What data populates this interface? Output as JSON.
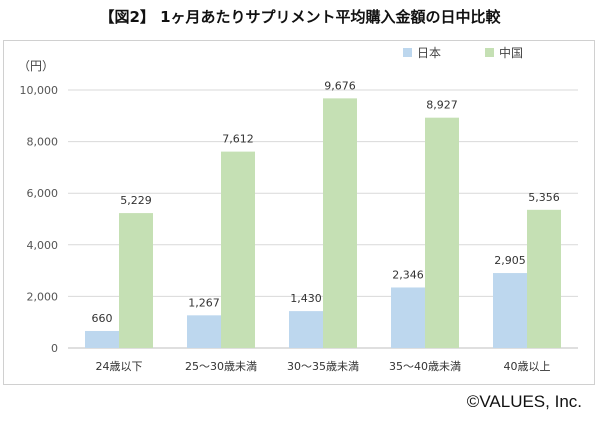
{
  "title": "【図2】 1ヶ月あたりサプリメント平均購入金額の日中比較",
  "copyright": "©VALUES, Inc.",
  "chart_data": {
    "type": "bar",
    "unit_label": "（円）",
    "categories": [
      "24歳以下",
      "25〜30歳未満",
      "30〜35歳未満",
      "35〜40歳未満",
      "40歳以上"
    ],
    "series": [
      {
        "name": "日本",
        "color": "#bdd7ee",
        "values": [
          660,
          1267,
          1430,
          2346,
          2905
        ],
        "labels": [
          "660",
          "1,267",
          "1,430",
          "2,346",
          "2,905"
        ]
      },
      {
        "name": "中国",
        "color": "#c5e0b4",
        "values": [
          5229,
          7612,
          9676,
          8927,
          5356
        ],
        "labels": [
          "5,229",
          "7,612",
          "9,676",
          "8,927",
          "5,356"
        ]
      }
    ],
    "ylim": [
      0,
      10000
    ],
    "yticks": [
      0,
      2000,
      4000,
      6000,
      8000,
      10000
    ],
    "ytick_labels": [
      "0",
      "2,000",
      "4,000",
      "6,000",
      "8,000",
      "10,000"
    ],
    "grid": true,
    "legend_position": "top-right"
  }
}
